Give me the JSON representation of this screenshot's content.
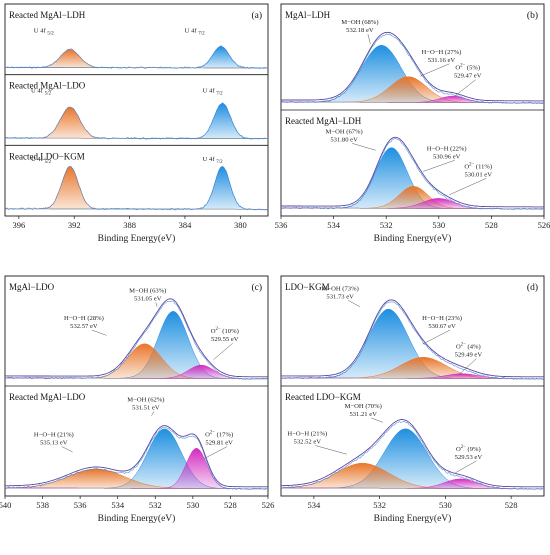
{
  "figure": {
    "xlabel": "Binding Energy(eV)"
  },
  "colors": {
    "blue": "#1e8fe0",
    "orange": "#e8762a",
    "magenta": "#d22cc0",
    "envelope": "#5a4a9e",
    "raw": "#3a7bd5"
  },
  "chart_data": [
    {
      "panel": "(a)",
      "type": "area",
      "xlim": [
        397,
        378
      ],
      "reversed": true,
      "xticks": [
        396,
        392,
        388,
        384,
        380
      ],
      "xlabel": "Binding Energy(eV)",
      "subplots": [
        {
          "title": "Reacted MgAl−LDH",
          "peaks": [
            {
              "label": "U 4f",
              "sub": "5/2",
              "center": 392.3,
              "amp": 0.32,
              "width": 0.7,
              "color": "orange"
            },
            {
              "label": "U 4f",
              "sub": "7/2",
              "center": 381.4,
              "amp": 0.38,
              "width": 0.6,
              "color": "blue"
            }
          ]
        },
        {
          "title": "Reacted MgAl−LDO",
          "peaks": [
            {
              "label": "U 4f",
              "sub": "5/2",
              "center": 392.3,
              "amp": 0.55,
              "width": 0.7,
              "color": "orange"
            },
            {
              "label": "U 4f",
              "sub": "7/2",
              "center": 381.3,
              "amp": 0.62,
              "width": 0.6,
              "color": "blue"
            }
          ]
        },
        {
          "title": "Reacted LDO−KGM",
          "peaks": [
            {
              "label": "U 4f",
              "sub": "5/2",
              "center": 392.3,
              "amp": 0.75,
              "width": 0.6,
              "color": "orange"
            },
            {
              "label": "U 4f",
              "sub": "7/2",
              "center": 381.3,
              "amp": 0.75,
              "width": 0.55,
              "color": "blue"
            }
          ]
        }
      ]
    },
    {
      "panel": "(b)",
      "type": "area",
      "xlim": [
        536,
        526
      ],
      "reversed": true,
      "xticks": [
        536,
        534,
        532,
        530,
        528,
        526
      ],
      "xlabel": "Binding Energy(eV)",
      "subplots": [
        {
          "title": "MgAl−LDH",
          "peaks": [
            {
              "name": "M−OH",
              "pct": "68%",
              "energy": "532.18 eV",
              "center": 532.18,
              "amp": 0.62,
              "width": 0.75,
              "color": "blue"
            },
            {
              "name": "H−O−H",
              "pct": "27%",
              "energy": "531.16 eV",
              "center": 531.16,
              "amp": 0.28,
              "width": 0.7,
              "color": "orange"
            },
            {
              "name": "O2−",
              "pct": "5%",
              "energy": "529.47 eV",
              "center": 529.47,
              "amp": 0.07,
              "width": 0.5,
              "color": "magenta"
            }
          ]
        },
        {
          "title": "Reacted MgAl−LDH",
          "peaks": [
            {
              "name": "M−OH",
              "pct": "67%",
              "energy": "531.80 eV",
              "center": 531.8,
              "amp": 0.66,
              "width": 0.6,
              "color": "blue"
            },
            {
              "name": "H−O−H",
              "pct": "22%",
              "energy": "530.96 eV",
              "center": 530.96,
              "amp": 0.24,
              "width": 0.55,
              "color": "orange"
            },
            {
              "name": "O2−",
              "pct": "11%",
              "energy": "530.01 eV",
              "center": 530.01,
              "amp": 0.11,
              "width": 0.6,
              "color": "magenta"
            }
          ]
        }
      ]
    },
    {
      "panel": "(c)",
      "type": "area",
      "xlim": [
        540,
        526
      ],
      "reversed": true,
      "xticks": [
        540,
        538,
        536,
        534,
        532,
        530,
        528,
        526
      ],
      "xlabel": "Binding Energy(eV)",
      "subplots": [
        {
          "title": "MgAl−LDO",
          "peaks": [
            {
              "name": "M−OH",
              "pct": "63%",
              "energy": "531.05 eV",
              "center": 531.05,
              "amp": 0.7,
              "width": 0.8,
              "color": "blue"
            },
            {
              "name": "H−O−H",
              "pct": "28%",
              "energy": "532.57 eV",
              "center": 532.57,
              "amp": 0.36,
              "width": 0.9,
              "color": "orange"
            },
            {
              "name": "O2−",
              "pct": "10%",
              "energy": "529.55 eV",
              "center": 529.55,
              "amp": 0.14,
              "width": 0.7,
              "color": "magenta"
            }
          ]
        },
        {
          "title": "Reacted MgAl−LDO",
          "peaks": [
            {
              "name": "M−OH",
              "pct": "62%",
              "energy": "531.51 eV",
              "center": 531.51,
              "amp": 0.62,
              "width": 0.9,
              "color": "blue"
            },
            {
              "name": "H−O−H",
              "pct": "21%",
              "energy": "535.13 eV",
              "center": 535.13,
              "amp": 0.2,
              "width": 1.5,
              "color": "orange"
            },
            {
              "name": "O2−",
              "pct": "17%",
              "energy": "529.81 eV",
              "center": 529.81,
              "amp": 0.42,
              "width": 0.55,
              "color": "magenta"
            }
          ]
        }
      ]
    },
    {
      "panel": "(d)",
      "type": "area",
      "xlim": [
        535,
        527
      ],
      "reversed": true,
      "xticks": [
        534,
        532,
        530,
        528
      ],
      "xlabel": "Binding Energy(eV)",
      "subplots": [
        {
          "title": "LDO−KGM",
          "peaks": [
            {
              "name": "M−OH",
              "pct": "73%",
              "energy": "531.73 eV",
              "center": 531.73,
              "amp": 0.72,
              "width": 0.6,
              "color": "blue"
            },
            {
              "name": "H−O−H",
              "pct": "23%",
              "energy": "530.67 eV",
              "center": 530.67,
              "amp": 0.22,
              "width": 0.7,
              "color": "orange"
            },
            {
              "name": "O2−",
              "pct": "4%",
              "energy": "529.49 eV",
              "center": 529.49,
              "amp": 0.05,
              "width": 0.5,
              "color": "magenta"
            }
          ]
        },
        {
          "title": "Reacted LDO−KGM",
          "peaks": [
            {
              "name": "M−OH",
              "pct": "70%",
              "energy": "531.21 eV",
              "center": 531.21,
              "amp": 0.62,
              "width": 0.65,
              "color": "blue"
            },
            {
              "name": "H−O−H",
              "pct": "21%",
              "energy": "532.52 eV",
              "center": 532.52,
              "amp": 0.26,
              "width": 0.8,
              "color": "orange"
            },
            {
              "name": "O2−",
              "pct": "9%",
              "energy": "529.53 eV",
              "center": 529.53,
              "amp": 0.1,
              "width": 0.5,
              "color": "magenta"
            }
          ]
        }
      ]
    }
  ]
}
